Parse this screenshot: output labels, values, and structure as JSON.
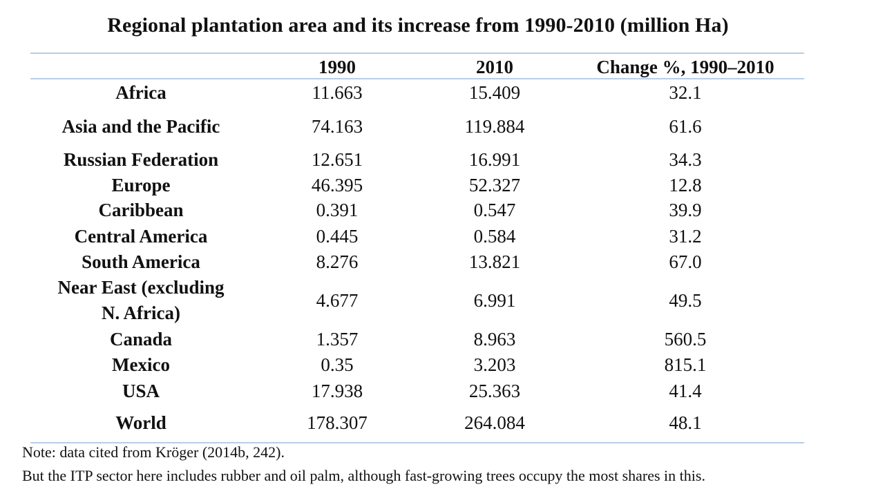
{
  "title": "Regional plantation area and its increase from 1990-2010 (million Ha)",
  "headers": {
    "region": "",
    "y1990": "1990",
    "y2010": "2010",
    "change": "Change %, 1990–2010"
  },
  "rows": [
    {
      "region": "Africa",
      "y1990": "11.663",
      "y2010": "15.409",
      "change": "32.1"
    },
    {
      "region": "Asia and the Pacific",
      "y1990": "74.163",
      "y2010": "119.884",
      "change": "61.6"
    },
    {
      "region": "Russian Federation",
      "y1990": "12.651",
      "y2010": "16.991",
      "change": "34.3"
    },
    {
      "region": "Europe",
      "y1990": "46.395",
      "y2010": "52.327",
      "change": "12.8"
    },
    {
      "region": "Caribbean",
      "y1990": "0.391",
      "y2010": "0.547",
      "change": "39.9"
    },
    {
      "region": "Central America",
      "y1990": "0.445",
      "y2010": "0.584",
      "change": "31.2"
    },
    {
      "region": "South America",
      "y1990": "8.276",
      "y2010": "13.821",
      "change": "67.0"
    },
    {
      "region_line1": "Near East (excluding",
      "region_line2": "N. Africa)",
      "y1990": "4.677",
      "y2010": "6.991",
      "change": "49.5"
    },
    {
      "region": "Canada",
      "y1990": "1.357",
      "y2010": "8.963",
      "change": "560.5"
    },
    {
      "region": "Mexico",
      "y1990": "0.35",
      "y2010": "3.203",
      "change": "815.1"
    },
    {
      "region": "USA",
      "y1990": "17.938",
      "y2010": "25.363",
      "change": "41.4"
    },
    {
      "region": "World",
      "y1990": "178.307",
      "y2010": "264.084",
      "change": "48.1"
    }
  ],
  "notes": [
    "Note: data cited from Kröger (2014b, 242).",
    "But the ITP sector here includes rubber and oil palm, although fast-growing trees occupy the most shares in this."
  ]
}
